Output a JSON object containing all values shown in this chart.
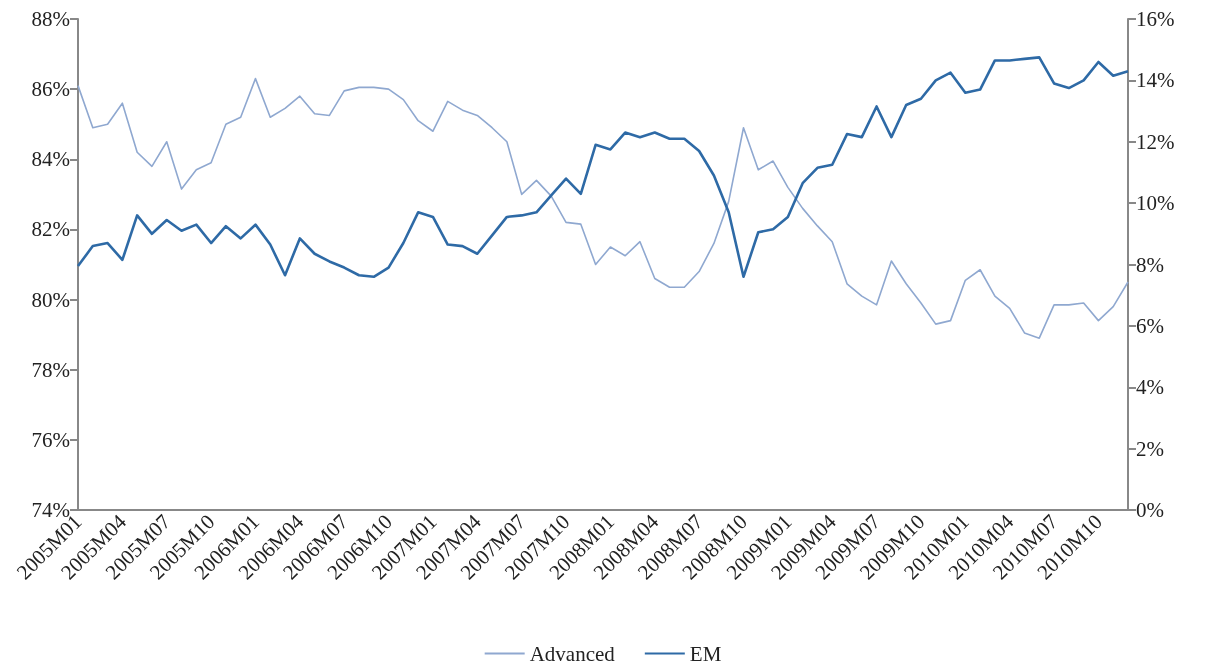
{
  "chart_data": {
    "type": "line",
    "categories": [
      "2005M01",
      null,
      null,
      "2005M04",
      null,
      null,
      "2005M07",
      null,
      null,
      "2005M10",
      null,
      null,
      "2006M01",
      null,
      null,
      "2006M04",
      null,
      null,
      "2006M07",
      null,
      null,
      "2006M10",
      null,
      null,
      "2007M01",
      null,
      null,
      "2007M04",
      null,
      null,
      "2007M07",
      null,
      null,
      "2007M10",
      null,
      null,
      "2008M01",
      null,
      null,
      "2008M04",
      null,
      null,
      "2008M07",
      null,
      null,
      "2008M10",
      null,
      null,
      "2009M01",
      null,
      null,
      "2009M04",
      null,
      null,
      "2009M07",
      null,
      null,
      "2009M10",
      null,
      null,
      "2010M01",
      null,
      null,
      "2010M04",
      null,
      null,
      "2010M07",
      null,
      null,
      "2010M10",
      null,
      null
    ],
    "series": [
      {
        "name": "Advanced",
        "color": "#8fa8d0",
        "values": [
          86.1,
          84.9,
          85.0,
          85.6,
          84.2,
          83.8,
          84.5,
          83.15,
          83.7,
          83.9,
          85.0,
          85.2,
          86.3,
          85.2,
          85.45,
          85.8,
          85.3,
          85.25,
          85.95,
          86.05,
          86.05,
          86.0,
          85.7,
          85.1,
          84.8,
          85.65,
          85.4,
          85.25,
          84.9,
          84.5,
          83.0,
          83.4,
          82.95,
          82.2,
          82.15,
          81.0,
          81.5,
          81.25,
          81.65,
          80.6,
          80.35,
          80.35,
          80.8,
          81.6,
          82.8,
          84.9,
          83.7,
          83.95,
          83.2,
          82.6,
          82.1,
          81.65,
          80.45,
          80.1,
          79.85,
          81.1,
          80.45,
          79.9,
          79.3,
          79.4,
          80.55,
          80.85,
          80.1,
          79.75,
          79.05,
          78.9,
          79.85,
          79.85,
          79.9,
          79.4,
          79.8,
          80.5
        ]
      },
      {
        "name": "EM",
        "color": "#2e6aa6",
        "axis": "y2",
        "values": [
          7.95,
          8.6,
          8.7,
          8.15,
          9.6,
          9.0,
          9.45,
          9.1,
          9.3,
          8.7,
          9.25,
          8.85,
          9.3,
          8.65,
          7.65,
          8.85,
          8.35,
          8.1,
          7.9,
          7.65,
          7.6,
          7.9,
          8.7,
          9.7,
          9.55,
          8.65,
          8.6,
          8.35,
          8.95,
          9.55,
          9.6,
          9.7,
          10.25,
          10.8,
          10.3,
          11.9,
          11.75,
          12.3,
          12.15,
          12.3,
          12.1,
          12.1,
          11.7,
          10.9,
          9.7,
          7.6,
          9.05,
          9.15,
          9.55,
          10.65,
          11.15,
          11.25,
          12.25,
          12.15,
          13.15,
          12.15,
          13.2,
          13.4,
          14.0,
          14.25,
          13.6,
          13.7,
          14.65,
          14.65,
          14.7,
          14.75,
          13.9,
          13.75,
          14.0,
          14.6,
          14.15,
          14.3
        ]
      }
    ],
    "ylim": [
      74,
      88
    ],
    "yticks": [
      {
        "value": 74,
        "label": "74%"
      },
      {
        "value": 76,
        "label": "76%"
      },
      {
        "value": 78,
        "label": "78%"
      },
      {
        "value": 80,
        "label": "80%"
      },
      {
        "value": 82,
        "label": "82%"
      },
      {
        "value": 84,
        "label": "84%"
      },
      {
        "value": 86,
        "label": "86%"
      },
      {
        "value": 88,
        "label": "88%"
      }
    ],
    "y2lim": [
      0,
      16
    ],
    "y2ticks": [
      {
        "value": 0,
        "label": "0%"
      },
      {
        "value": 2,
        "label": "2%"
      },
      {
        "value": 4,
        "label": "4%"
      },
      {
        "value": 6,
        "label": "6%"
      },
      {
        "value": 8,
        "label": "8%"
      },
      {
        "value": 10,
        "label": "10%"
      },
      {
        "value": 12,
        "label": "12%"
      },
      {
        "value": 14,
        "label": "14%"
      },
      {
        "value": 16,
        "label": "16%"
      }
    ],
    "grid": false,
    "legend": "bottom",
    "marker": "none",
    "line_style": "solid"
  }
}
